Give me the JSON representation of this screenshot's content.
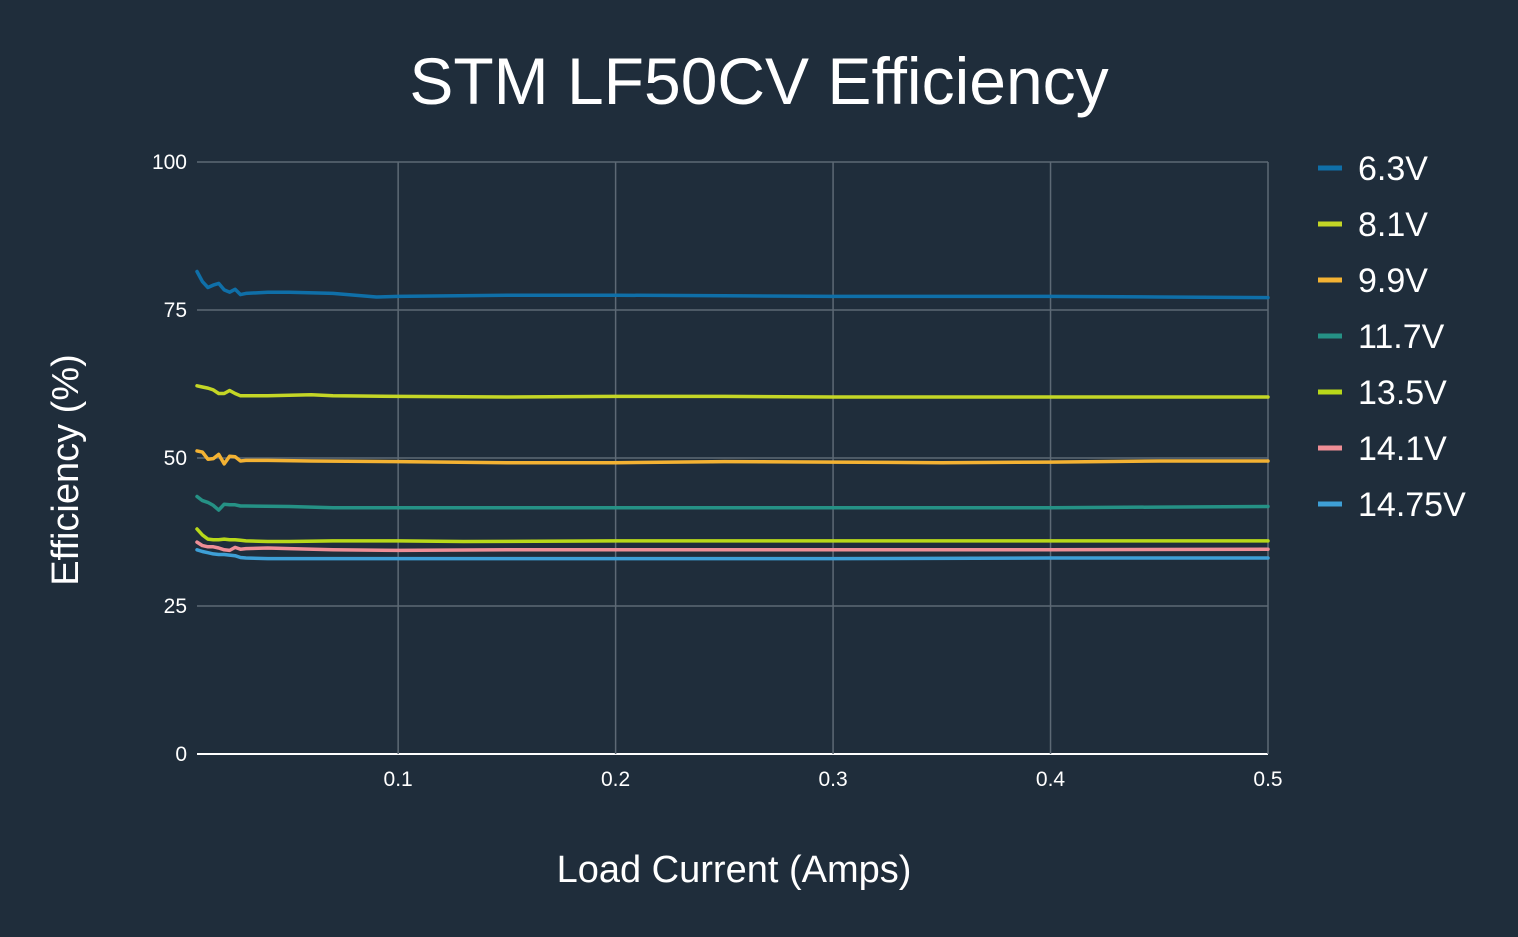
{
  "chart_data": {
    "type": "line",
    "title": "STM LF50CV Efficiency",
    "xlabel": "Load Current (Amps)",
    "ylabel": "Efficiency (%)",
    "xlim": [
      0.0075,
      0.5
    ],
    "ylim": [
      0,
      100
    ],
    "x_ticks": [
      0.1,
      0.2,
      0.3,
      0.4,
      0.5
    ],
    "x_tick_labels": [
      "0.1",
      "0.2",
      "0.3",
      "0.4",
      "0.5"
    ],
    "y_ticks": [
      0,
      25,
      50,
      75,
      100
    ],
    "y_tick_labels": [
      "0",
      "25",
      "50",
      "75",
      "100"
    ],
    "grid": true,
    "legend_position": "right",
    "series": [
      {
        "name": "6.3V",
        "color": "#0f6fa8",
        "x": [
          0.0075,
          0.01,
          0.0125,
          0.015,
          0.0175,
          0.02,
          0.0225,
          0.025,
          0.0275,
          0.03,
          0.04,
          0.05,
          0.07,
          0.09,
          0.1,
          0.15,
          0.2,
          0.25,
          0.3,
          0.35,
          0.4,
          0.45,
          0.5
        ],
        "values": [
          81.5,
          79.8,
          78.8,
          79.2,
          79.5,
          78.4,
          78.0,
          78.5,
          77.6,
          77.8,
          78.0,
          78.0,
          77.8,
          77.2,
          77.3,
          77.5,
          77.5,
          77.4,
          77.3,
          77.3,
          77.3,
          77.2,
          77.1
        ]
      },
      {
        "name": "8.1V",
        "color": "#c4d626",
        "x": [
          0.0075,
          0.01,
          0.0125,
          0.015,
          0.0175,
          0.02,
          0.0225,
          0.025,
          0.0275,
          0.03,
          0.04,
          0.06,
          0.07,
          0.1,
          0.15,
          0.2,
          0.25,
          0.3,
          0.35,
          0.4,
          0.45,
          0.5
        ],
        "values": [
          62.2,
          62.0,
          61.8,
          61.5,
          60.9,
          60.9,
          61.4,
          60.9,
          60.5,
          60.5,
          60.5,
          60.7,
          60.5,
          60.4,
          60.3,
          60.4,
          60.4,
          60.3,
          60.3,
          60.3,
          60.3,
          60.3
        ]
      },
      {
        "name": "9.9V",
        "color": "#f3b233",
        "x": [
          0.0075,
          0.01,
          0.0125,
          0.015,
          0.0175,
          0.02,
          0.0225,
          0.025,
          0.0275,
          0.03,
          0.04,
          0.06,
          0.1,
          0.15,
          0.2,
          0.25,
          0.3,
          0.35,
          0.4,
          0.45,
          0.5
        ],
        "values": [
          51.2,
          51.0,
          49.8,
          49.9,
          50.6,
          49.0,
          50.3,
          50.2,
          49.5,
          49.6,
          49.6,
          49.5,
          49.4,
          49.2,
          49.2,
          49.4,
          49.3,
          49.2,
          49.3,
          49.5,
          49.5
        ]
      },
      {
        "name": "11.7V",
        "color": "#259185",
        "x": [
          0.0075,
          0.01,
          0.0125,
          0.015,
          0.0175,
          0.02,
          0.0225,
          0.025,
          0.0275,
          0.03,
          0.05,
          0.07,
          0.1,
          0.15,
          0.2,
          0.25,
          0.3,
          0.35,
          0.4,
          0.45,
          0.5
        ],
        "values": [
          43.5,
          42.8,
          42.5,
          42.0,
          41.2,
          42.2,
          42.1,
          42.1,
          41.9,
          41.9,
          41.8,
          41.6,
          41.6,
          41.6,
          41.6,
          41.6,
          41.6,
          41.6,
          41.6,
          41.7,
          41.8
        ]
      },
      {
        "name": "13.5V",
        "color": "#b8d81a",
        "x": [
          0.0075,
          0.01,
          0.0125,
          0.015,
          0.0175,
          0.02,
          0.0225,
          0.025,
          0.0275,
          0.03,
          0.04,
          0.05,
          0.07,
          0.1,
          0.13,
          0.2,
          0.25,
          0.3,
          0.35,
          0.4,
          0.45,
          0.5
        ],
        "values": [
          38.0,
          37.0,
          36.3,
          36.2,
          36.2,
          36.3,
          36.2,
          36.2,
          36.1,
          36.0,
          35.9,
          35.9,
          36.0,
          36.0,
          35.9,
          36.0,
          36.0,
          36.0,
          36.0,
          36.0,
          36.0,
          36.0
        ]
      },
      {
        "name": "14.1V",
        "color": "#ef8e96",
        "x": [
          0.0075,
          0.01,
          0.0125,
          0.015,
          0.0175,
          0.02,
          0.0225,
          0.025,
          0.0275,
          0.03,
          0.04,
          0.05,
          0.07,
          0.1,
          0.15,
          0.2,
          0.3,
          0.4,
          0.5
        ],
        "values": [
          35.8,
          35.2,
          35.0,
          35.0,
          34.8,
          34.5,
          34.4,
          34.9,
          34.6,
          34.7,
          34.8,
          34.7,
          34.5,
          34.4,
          34.5,
          34.5,
          34.5,
          34.5,
          34.6
        ]
      },
      {
        "name": "14.75V",
        "color": "#3e9fd6",
        "x": [
          0.0075,
          0.01,
          0.0125,
          0.015,
          0.0175,
          0.02,
          0.0225,
          0.025,
          0.0275,
          0.03,
          0.04,
          0.05,
          0.07,
          0.1,
          0.15,
          0.2,
          0.3,
          0.4,
          0.5
        ],
        "values": [
          34.5,
          34.2,
          34.0,
          33.8,
          33.7,
          33.7,
          33.6,
          33.5,
          33.2,
          33.1,
          33.0,
          33.0,
          33.0,
          33.0,
          33.0,
          33.0,
          33.0,
          33.1,
          33.1
        ]
      }
    ]
  }
}
